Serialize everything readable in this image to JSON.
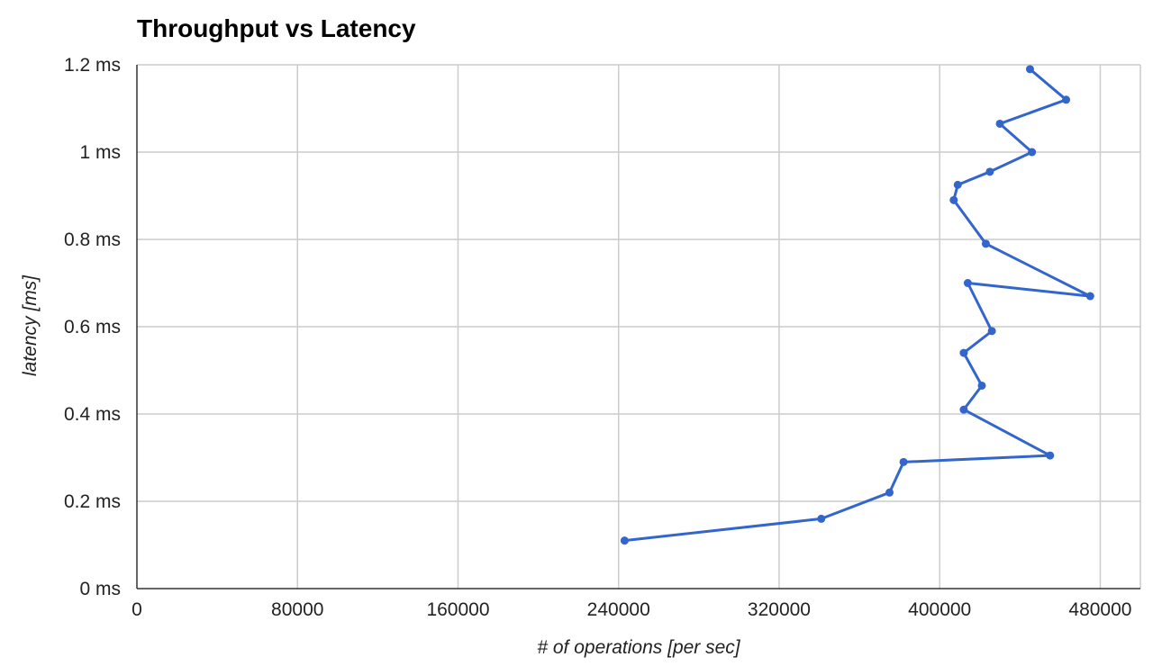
{
  "chart_data": {
    "type": "line",
    "title": "Throughput vs Latency",
    "xlabel": "# of operations [per sec]",
    "ylabel": "latency [ms]",
    "xlim": [
      0,
      500000
    ],
    "ylim": [
      0,
      1.2
    ],
    "x_ticks": [
      0,
      80000,
      160000,
      240000,
      320000,
      400000,
      480000
    ],
    "x_tick_labels": [
      "0",
      "80000",
      "160000",
      "240000",
      "320000",
      "400000",
      "480000"
    ],
    "y_ticks": [
      0,
      0.2,
      0.4,
      0.6,
      0.8,
      1.0,
      1.2
    ],
    "y_tick_labels": [
      "0 ms",
      "0.2 ms",
      "0.4 ms",
      "0.6 ms",
      "0.8 ms",
      "1 ms",
      "1.2 ms"
    ],
    "grid": true,
    "legend": "none",
    "series": [
      {
        "color": "#3366cc",
        "points": [
          {
            "x": 243000,
            "y": 0.11
          },
          {
            "x": 341000,
            "y": 0.16
          },
          {
            "x": 375000,
            "y": 0.22
          },
          {
            "x": 382000,
            "y": 0.29
          },
          {
            "x": 455000,
            "y": 0.305
          },
          {
            "x": 412000,
            "y": 0.41
          },
          {
            "x": 421000,
            "y": 0.465
          },
          {
            "x": 412000,
            "y": 0.54
          },
          {
            "x": 426000,
            "y": 0.59
          },
          {
            "x": 414000,
            "y": 0.7
          },
          {
            "x": 475000,
            "y": 0.67
          },
          {
            "x": 423000,
            "y": 0.79
          },
          {
            "x": 407000,
            "y": 0.89
          },
          {
            "x": 409000,
            "y": 0.925
          },
          {
            "x": 425000,
            "y": 0.955
          },
          {
            "x": 446000,
            "y": 1.0
          },
          {
            "x": 430000,
            "y": 1.065
          },
          {
            "x": 463000,
            "y": 1.12
          },
          {
            "x": 445000,
            "y": 1.19
          }
        ]
      }
    ]
  }
}
